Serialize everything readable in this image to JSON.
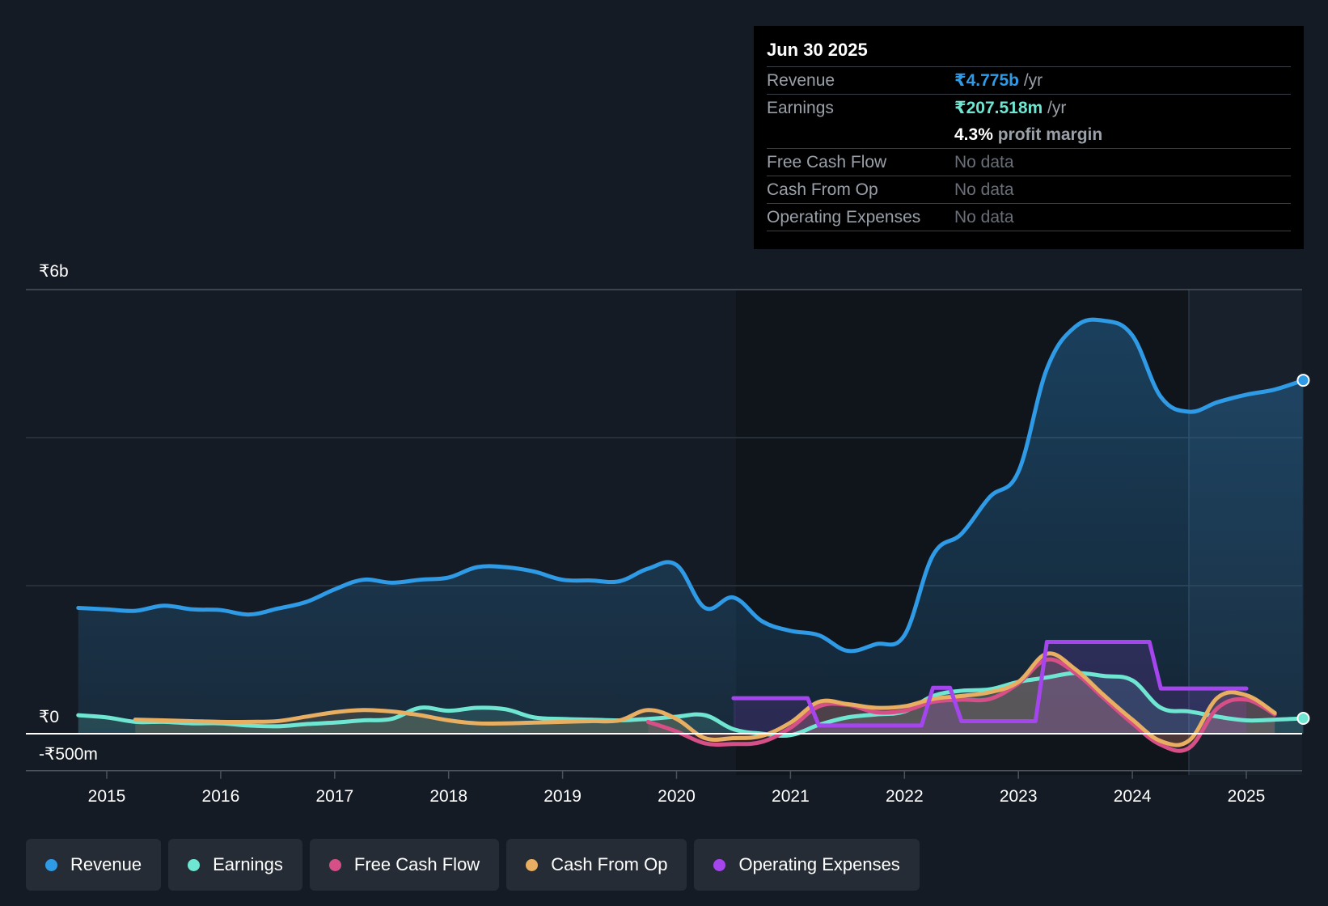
{
  "tooltip": {
    "date": "Jun 30 2025",
    "rows": [
      {
        "label": "Revenue",
        "value": "₹4.775b",
        "unit": " /yr"
      },
      {
        "label": "Earnings",
        "value": "₹207.518m",
        "unit": " /yr"
      },
      {
        "margin_value": "4.3%",
        "margin_text": " profit margin"
      },
      {
        "label": "Free Cash Flow",
        "value": "No data"
      },
      {
        "label": "Cash From Op",
        "value": "No data"
      },
      {
        "label": "Operating Expenses",
        "value": "No data"
      }
    ]
  },
  "legend": [
    {
      "label": "Revenue",
      "color": "#2f9ae6"
    },
    {
      "label": "Earnings",
      "color": "#6fe6d2"
    },
    {
      "label": "Free Cash Flow",
      "color": "#d64f86"
    },
    {
      "label": "Cash From Op",
      "color": "#e8ae62"
    },
    {
      "label": "Operating Expenses",
      "color": "#a545ee"
    }
  ],
  "chart_data": {
    "type": "area",
    "y_tick_labels": [
      "₹6b",
      "₹0",
      "-₹500m"
    ],
    "ylim": [
      -500,
      6000
    ],
    "y_unit": "₹m",
    "x_tick_labels": [
      "2015",
      "2016",
      "2017",
      "2018",
      "2019",
      "2020",
      "2021",
      "2022",
      "2023",
      "2024",
      "2025"
    ],
    "xlim": [
      2014.5,
      2025.5
    ],
    "grid": true,
    "legend_position": "bottom",
    "series": [
      {
        "name": "Revenue",
        "color": "#2f9ae6",
        "fill": true,
        "points": [
          [
            2014.75,
            1700
          ],
          [
            2015,
            1680
          ],
          [
            2015.25,
            1660
          ],
          [
            2015.5,
            1730
          ],
          [
            2015.75,
            1680
          ],
          [
            2016,
            1670
          ],
          [
            2016.25,
            1610
          ],
          [
            2016.5,
            1690
          ],
          [
            2016.75,
            1780
          ],
          [
            2017,
            1950
          ],
          [
            2017.25,
            2080
          ],
          [
            2017.5,
            2040
          ],
          [
            2017.75,
            2080
          ],
          [
            2018,
            2110
          ],
          [
            2018.25,
            2250
          ],
          [
            2018.5,
            2250
          ],
          [
            2018.75,
            2190
          ],
          [
            2019,
            2080
          ],
          [
            2019.25,
            2070
          ],
          [
            2019.5,
            2060
          ],
          [
            2019.75,
            2230
          ],
          [
            2020,
            2280
          ],
          [
            2020.25,
            1700
          ],
          [
            2020.5,
            1840
          ],
          [
            2020.75,
            1520
          ],
          [
            2021,
            1390
          ],
          [
            2021.25,
            1330
          ],
          [
            2021.5,
            1120
          ],
          [
            2021.75,
            1210
          ],
          [
            2022,
            1330
          ],
          [
            2022.25,
            2410
          ],
          [
            2022.5,
            2700
          ],
          [
            2022.75,
            3200
          ],
          [
            2023,
            3540
          ],
          [
            2023.25,
            4930
          ],
          [
            2023.5,
            5500
          ],
          [
            2023.75,
            5580
          ],
          [
            2024,
            5380
          ],
          [
            2024.25,
            4550
          ],
          [
            2024.5,
            4350
          ],
          [
            2024.75,
            4480
          ],
          [
            2025,
            4580
          ],
          [
            2025.25,
            4650
          ],
          [
            2025.5,
            4775
          ]
        ]
      },
      {
        "name": "Earnings",
        "color": "#6fe6d2",
        "fill": true,
        "points": [
          [
            2014.75,
            250
          ],
          [
            2015,
            220
          ],
          [
            2015.25,
            160
          ],
          [
            2015.5,
            160
          ],
          [
            2015.75,
            140
          ],
          [
            2016,
            140
          ],
          [
            2016.25,
            110
          ],
          [
            2016.5,
            100
          ],
          [
            2016.75,
            130
          ],
          [
            2017,
            150
          ],
          [
            2017.25,
            180
          ],
          [
            2017.5,
            200
          ],
          [
            2017.75,
            350
          ],
          [
            2018,
            310
          ],
          [
            2018.25,
            350
          ],
          [
            2018.5,
            330
          ],
          [
            2018.75,
            220
          ],
          [
            2019,
            200
          ],
          [
            2019.25,
            190
          ],
          [
            2019.5,
            180
          ],
          [
            2019.75,
            200
          ],
          [
            2020,
            230
          ],
          [
            2020.25,
            250
          ],
          [
            2020.5,
            60
          ],
          [
            2020.75,
            0
          ],
          [
            2021,
            -20
          ],
          [
            2021.25,
            120
          ],
          [
            2021.5,
            220
          ],
          [
            2021.75,
            260
          ],
          [
            2022,
            300
          ],
          [
            2022.25,
            510
          ],
          [
            2022.5,
            580
          ],
          [
            2022.75,
            600
          ],
          [
            2023,
            700
          ],
          [
            2023.25,
            760
          ],
          [
            2023.5,
            820
          ],
          [
            2023.75,
            780
          ],
          [
            2024,
            720
          ],
          [
            2024.25,
            350
          ],
          [
            2024.5,
            300
          ],
          [
            2024.75,
            230
          ],
          [
            2025,
            180
          ],
          [
            2025.25,
            190
          ],
          [
            2025.5,
            207.5
          ]
        ]
      },
      {
        "name": "Free Cash Flow",
        "color": "#d64f86",
        "fill": true,
        "points": [
          [
            2019.75,
            160
          ],
          [
            2020,
            30
          ],
          [
            2020.25,
            -130
          ],
          [
            2020.5,
            -140
          ],
          [
            2020.75,
            -110
          ],
          [
            2021,
            80
          ],
          [
            2021.25,
            370
          ],
          [
            2021.5,
            390
          ],
          [
            2021.75,
            290
          ],
          [
            2022,
            310
          ],
          [
            2022.25,
            430
          ],
          [
            2022.5,
            460
          ],
          [
            2022.75,
            470
          ],
          [
            2023,
            680
          ],
          [
            2023.25,
            1000
          ],
          [
            2023.5,
            820
          ],
          [
            2023.75,
            480
          ],
          [
            2024,
            140
          ],
          [
            2024.25,
            -150
          ],
          [
            2024.5,
            -190
          ],
          [
            2024.75,
            350
          ],
          [
            2025,
            460
          ],
          [
            2025.25,
            260
          ]
        ]
      },
      {
        "name": "Cash From Op",
        "color": "#e8ae62",
        "fill": true,
        "points": [
          [
            2015.25,
            190
          ],
          [
            2015.5,
            180
          ],
          [
            2015.75,
            170
          ],
          [
            2016,
            160
          ],
          [
            2016.25,
            160
          ],
          [
            2016.5,
            170
          ],
          [
            2016.75,
            230
          ],
          [
            2017,
            290
          ],
          [
            2017.25,
            320
          ],
          [
            2017.5,
            300
          ],
          [
            2017.75,
            250
          ],
          [
            2018,
            180
          ],
          [
            2018.25,
            140
          ],
          [
            2018.5,
            140
          ],
          [
            2018.75,
            150
          ],
          [
            2019,
            160
          ],
          [
            2019.25,
            170
          ],
          [
            2019.5,
            180
          ],
          [
            2019.75,
            320
          ],
          [
            2020,
            200
          ],
          [
            2020.25,
            -60
          ],
          [
            2020.5,
            -60
          ],
          [
            2020.75,
            -30
          ],
          [
            2021,
            150
          ],
          [
            2021.25,
            430
          ],
          [
            2021.5,
            400
          ],
          [
            2021.75,
            350
          ],
          [
            2022,
            370
          ],
          [
            2022.25,
            470
          ],
          [
            2022.5,
            510
          ],
          [
            2022.75,
            560
          ],
          [
            2023,
            700
          ],
          [
            2023.25,
            1080
          ],
          [
            2023.5,
            870
          ],
          [
            2023.75,
            520
          ],
          [
            2024,
            190
          ],
          [
            2024.25,
            -100
          ],
          [
            2024.5,
            -90
          ],
          [
            2024.75,
            490
          ],
          [
            2025,
            520
          ],
          [
            2025.25,
            280
          ]
        ]
      },
      {
        "name": "Operating Expenses",
        "color": "#a545ee",
        "fill": true,
        "step": true,
        "points": [
          [
            2020.5,
            480
          ],
          [
            2021,
            480
          ],
          [
            2021.25,
            110
          ],
          [
            2022,
            110
          ],
          [
            2022.25,
            620
          ],
          [
            2022.5,
            170
          ],
          [
            2023,
            170
          ],
          [
            2023.25,
            1240
          ],
          [
            2024,
            1240
          ],
          [
            2024.25,
            610
          ],
          [
            2025,
            610
          ]
        ]
      }
    ]
  }
}
